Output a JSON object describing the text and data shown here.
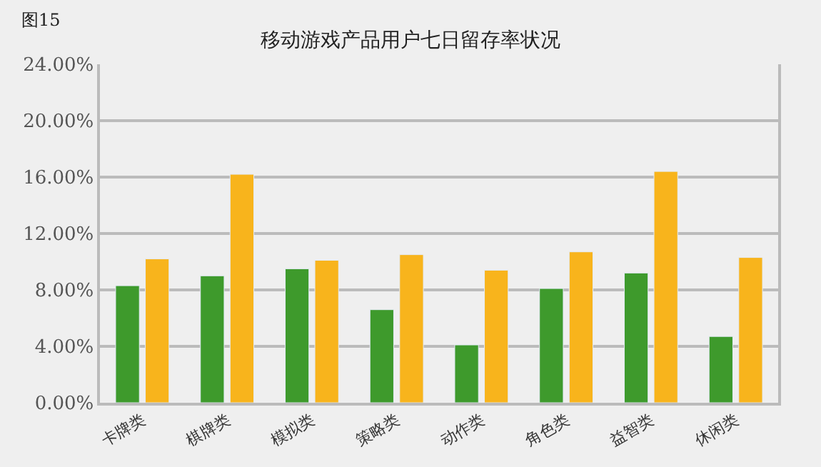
{
  "chart_data": {
    "type": "bar",
    "title": "移动游戏产品用户七日留存率状况",
    "annotations": [
      "图15"
    ],
    "categories": [
      "卡牌类",
      "棋牌类",
      "模拟类",
      "策略类",
      "动作类",
      "角色类",
      "益智类",
      "休闲类"
    ],
    "series": [
      {
        "color": "#3e9a2c",
        "values": [
          8.3,
          9.0,
          9.5,
          6.6,
          4.1,
          8.1,
          9.2,
          4.7
        ]
      },
      {
        "color": "#f8b41c",
        "values": [
          10.2,
          16.2,
          10.1,
          10.5,
          9.4,
          10.7,
          16.4,
          10.3
        ]
      }
    ],
    "ylim": [
      0,
      24
    ],
    "yticks": [
      {
        "value": 0,
        "label": "0.00%"
      },
      {
        "value": 4,
        "label": "4.00%"
      },
      {
        "value": 8,
        "label": "8.00%"
      },
      {
        "value": 12,
        "label": "12.00%"
      },
      {
        "value": 16,
        "label": "16.00%"
      },
      {
        "value": 20,
        "label": "20.00%"
      },
      {
        "value": 24,
        "label": "24.00%"
      }
    ],
    "grid": "y",
    "legend": false
  }
}
